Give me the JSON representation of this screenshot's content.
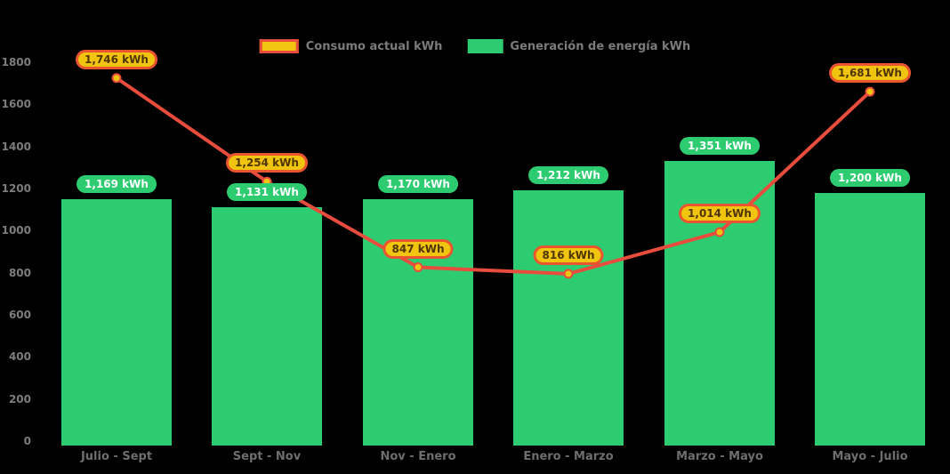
{
  "chart_data": {
    "type": "combo",
    "categories": [
      "Julio - Sept",
      "Sept - Nov",
      "Nov - Enero",
      "Enero - Marzo",
      "Marzo - Mayo",
      "Mayo - Julio"
    ],
    "series": [
      {
        "name": "Consumo actual kWh",
        "type": "line",
        "values": [
          1746,
          1254,
          847,
          816,
          1014,
          1681
        ],
        "labels": [
          "1,746 kWh",
          "1,254 kWh",
          "847 kWh",
          "816 kWh",
          "1,014 kWh",
          "1,681 kWh"
        ],
        "color": "#e74c3c",
        "marker_fill": "#f1c40f"
      },
      {
        "name": "Generación de energía kWh",
        "type": "bar",
        "values": [
          1169,
          1131,
          1170,
          1212,
          1351,
          1200
        ],
        "labels": [
          "1,169 kWh",
          "1,131 kWh",
          "1,170 kWh",
          "1,212 kWh",
          "1,351 kWh",
          "1,200 kWh"
        ],
        "color": "#2ecc71"
      }
    ],
    "ylim": [
      0,
      1800
    ],
    "ytick_step": 200,
    "yticks": [
      "0",
      "200",
      "400",
      "600",
      "800",
      "1000",
      "1200",
      "1400",
      "1600",
      "1800"
    ],
    "legend_position": "top-center",
    "grid": false,
    "background": "#000000",
    "axis_text_color": "#7d7d7d",
    "category_text_color": "#6e6e6e",
    "label_pill_colors": {
      "line_fill": "#f1c40f",
      "line_border": "#e8552f",
      "line_text": "#4f3500",
      "bar_fill": "#2ecc71",
      "bar_text": "#ffffff"
    }
  }
}
